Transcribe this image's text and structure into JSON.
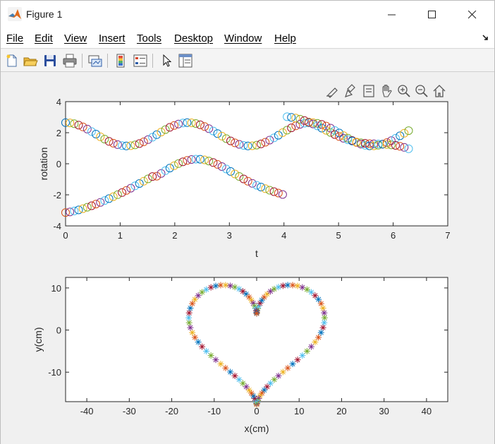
{
  "window": {
    "title": "Figure 1",
    "minimize_icon": "minimize-icon",
    "maximize_icon": "maximize-icon",
    "close_icon": "close-icon"
  },
  "menu": [
    "File",
    "Edit",
    "View",
    "Insert",
    "Tools",
    "Desktop",
    "Window",
    "Help"
  ],
  "toolbar": [
    "new-figure-icon",
    "open-file-icon",
    "save-icon",
    "print-icon",
    "link-plot-icon",
    "insert-colorbar-icon",
    "insert-legend-icon",
    "edit-plot-icon",
    "property-inspector-icon"
  ],
  "axes_toolbar": [
    "export-icon",
    "brush-icon",
    "data-tips-icon",
    "pan-icon",
    "zoom-in-icon",
    "zoom-out-icon",
    "home-icon"
  ],
  "chart_data": [
    {
      "type": "scatter",
      "marker": "o",
      "xlabel": "t",
      "ylabel": "rotation",
      "xlim": [
        0,
        7
      ],
      "ylim": [
        -4,
        4
      ],
      "xticks": [
        "0",
        "1",
        "2",
        "3",
        "4",
        "5",
        "6",
        "7"
      ],
      "yticks": [
        "4",
        "2",
        "0",
        "-2",
        "-4"
      ],
      "series": [
        {
          "id": "a",
          "formula": "t in [0, 2pi], rotation = 1.9 + 0.75*cos(2.8t)",
          "samples": 80
        },
        {
          "id": "b",
          "formula": "t in [0, 4], rotation = -1.55 - 1.6*cos(1.25t + 0.1); continues t in [4, 2pi] as rotation = 2.9 - 0.95*(t-4) + 0.25*sin(3.3t)",
          "samples": 80
        }
      ]
    },
    {
      "type": "scatter",
      "marker": "*",
      "xlabel": "x(cm)",
      "ylabel": "y(cm)",
      "xlim": [
        -45,
        45
      ],
      "ylim": [
        -17,
        12.5
      ],
      "xticks": [
        "-40",
        "-30",
        "-20",
        "-10",
        "0",
        "10",
        "20",
        "30",
        "40"
      ],
      "yticks": [
        "10",
        "0",
        "-10"
      ],
      "curve": "heart: x = 16 sin^3(t), y = 13cos(t) - 5cos(2t) - 2cos(3t) - cos(4t)",
      "samples": 100
    }
  ],
  "palette": [
    "#0072BD",
    "#D95319",
    "#EDB120",
    "#7E2F8E",
    "#77AC30",
    "#4DBEEE",
    "#A2142F"
  ]
}
